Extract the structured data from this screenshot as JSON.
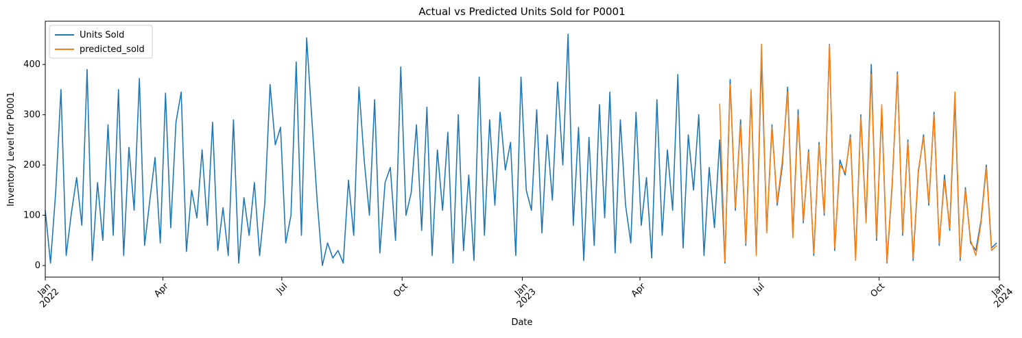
{
  "chart_data": {
    "type": "line",
    "title": "Actual vs Predicted Units Sold  for P0001",
    "x_label": "Date",
    "y_label": "Inventory Level for P0001",
    "x": [
      0,
      4,
      8,
      12,
      16,
      20,
      24,
      28,
      32,
      36,
      40,
      44,
      48,
      52,
      56,
      60,
      64,
      68,
      72,
      76,
      80,
      84,
      88,
      92,
      96,
      100,
      104,
      108,
      112,
      116,
      120,
      124,
      128,
      132,
      136,
      140,
      144,
      148,
      152,
      156,
      160,
      164,
      168,
      172,
      176,
      180,
      184,
      188,
      192,
      196,
      200,
      204,
      208,
      212,
      216,
      220,
      224,
      228,
      232,
      236,
      240,
      244,
      248,
      252,
      256,
      260,
      264,
      268,
      272,
      276,
      280,
      284,
      288,
      292,
      296,
      300,
      304,
      308,
      312,
      316,
      320,
      324,
      328,
      332,
      336,
      340,
      344,
      348,
      352,
      356,
      360,
      364,
      368,
      372,
      376,
      380,
      384,
      388,
      392,
      396,
      400,
      404,
      408,
      412,
      416,
      420,
      424,
      428,
      432,
      436,
      440,
      444,
      448,
      452,
      456,
      460,
      464,
      468,
      472,
      476,
      480,
      484,
      488,
      492,
      496,
      500,
      504,
      508,
      512,
      516,
      520,
      524,
      528,
      532,
      536,
      540,
      544,
      548,
      552,
      556,
      560,
      564,
      568,
      572,
      576,
      580,
      584,
      588,
      592,
      596,
      600,
      604,
      608,
      612,
      616,
      620,
      624,
      628,
      632,
      636,
      640,
      644,
      648,
      652,
      656,
      660,
      664,
      668,
      672,
      676,
      680,
      684,
      688,
      692,
      696,
      700,
      704,
      708,
      712,
      716,
      720,
      724,
      728
    ],
    "series": [
      {
        "name": "Units Sold",
        "color": "#1f77b4",
        "values": [
          110,
          5,
          147,
          350,
          20,
          105,
          175,
          80,
          390,
          10,
          165,
          50,
          280,
          60,
          350,
          20,
          235,
          110,
          372,
          40,
          130,
          215,
          45,
          343,
          75,
          285,
          345,
          28,
          150,
          95,
          230,
          80,
          285,
          30,
          115,
          20,
          290,
          5,
          135,
          60,
          165,
          20,
          125,
          360,
          240,
          275,
          45,
          100,
          405,
          60,
          453,
          290,
          130,
          0,
          45,
          15,
          30,
          5,
          170,
          60,
          355,
          210,
          100,
          330,
          25,
          165,
          195,
          50,
          395,
          100,
          145,
          280,
          70,
          315,
          20,
          230,
          110,
          265,
          5,
          300,
          30,
          180,
          10,
          375,
          60,
          290,
          120,
          305,
          190,
          245,
          20,
          375,
          150,
          110,
          310,
          65,
          260,
          130,
          365,
          200,
          460,
          80,
          275,
          10,
          255,
          40,
          320,
          95,
          345,
          25,
          290,
          120,
          45,
          305,
          80,
          175,
          15,
          330,
          60,
          230,
          110,
          380,
          35,
          260,
          150,
          300,
          20,
          195,
          75,
          250,
          5,
          370,
          110,
          290,
          40,
          340,
          25,
          410,
          70,
          280,
          120,
          200,
          355,
          60,
          310,
          85,
          230,
          20,
          245,
          100,
          440,
          30,
          210,
          180,
          260,
          15,
          300,
          90,
          400,
          50,
          310,
          5,
          160,
          385,
          60,
          250,
          10,
          185,
          260,
          120,
          305,
          40,
          180,
          70,
          330,
          10,
          155,
          45,
          30,
          90,
          200,
          35,
          45
        ]
      },
      {
        "name": "predicted_sold",
        "color": "#ff7f0e",
        "values": [
          null,
          null,
          null,
          null,
          null,
          null,
          null,
          null,
          null,
          null,
          null,
          null,
          null,
          null,
          null,
          null,
          null,
          null,
          null,
          null,
          null,
          null,
          null,
          null,
          null,
          null,
          null,
          null,
          null,
          null,
          null,
          null,
          null,
          null,
          null,
          null,
          null,
          null,
          null,
          null,
          null,
          null,
          null,
          null,
          null,
          null,
          null,
          null,
          null,
          null,
          null,
          null,
          null,
          null,
          null,
          null,
          null,
          null,
          null,
          null,
          null,
          null,
          null,
          null,
          null,
          null,
          null,
          null,
          null,
          null,
          null,
          null,
          null,
          null,
          null,
          null,
          null,
          null,
          null,
          null,
          null,
          null,
          null,
          null,
          null,
          null,
          null,
          null,
          null,
          null,
          null,
          null,
          null,
          null,
          null,
          null,
          null,
          null,
          null,
          null,
          null,
          null,
          null,
          null,
          null,
          null,
          null,
          null,
          null,
          null,
          null,
          null,
          null,
          null,
          null,
          null,
          null,
          null,
          null,
          null,
          null,
          null,
          null,
          null,
          null,
          null,
          null,
          null,
          null,
          322,
          8,
          360,
          115,
          280,
          45,
          350,
          20,
          440,
          65,
          275,
          125,
          210,
          345,
          55,
          300,
          90,
          225,
          25,
          240,
          105,
          438,
          35,
          200,
          185,
          255,
          10,
          295,
          85,
          380,
          55,
          320,
          8,
          165,
          380,
          65,
          245,
          15,
          190,
          255,
          125,
          300,
          45,
          170,
          75,
          345,
          15,
          150,
          50,
          20,
          85,
          195,
          30,
          40
        ]
      }
    ],
    "xlim": [
      0,
      730
    ],
    "xticks": [
      {
        "value": 0,
        "label": "Jan\n2022"
      },
      {
        "value": 90,
        "label": "Apr"
      },
      {
        "value": 181,
        "label": "Jul"
      },
      {
        "value": 273,
        "label": "Oct"
      },
      {
        "value": 365,
        "label": "Jan\n2023"
      },
      {
        "value": 455,
        "label": "Apr"
      },
      {
        "value": 546,
        "label": "Jul"
      },
      {
        "value": 638,
        "label": "Oct"
      },
      {
        "value": 730,
        "label": "Jan\n2024"
      }
    ],
    "ylim": [
      -23,
      486
    ],
    "yticks": [
      0,
      100,
      200,
      300,
      400
    ],
    "legend": "upper left"
  }
}
